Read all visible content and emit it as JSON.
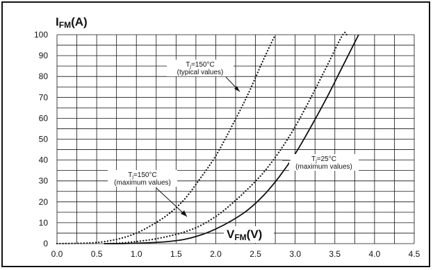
{
  "chart_data": {
    "type": "line",
    "ylabel": {
      "main": "I",
      "sub": "FM",
      "unit": "(A)"
    },
    "xlabel": {
      "main": "V",
      "sub": "FM",
      "unit": "(V)"
    },
    "xlim": [
      0,
      4.5
    ],
    "ylim": [
      0,
      100
    ],
    "xticks": [
      "0.0",
      "0.5",
      "1.0",
      "1.5",
      "2.0",
      "2.5",
      "3.0",
      "3.5",
      "4.0",
      "4.5"
    ],
    "yticks": [
      "0",
      "10",
      "20",
      "30",
      "40",
      "50",
      "60",
      "70",
      "80",
      "90",
      "100"
    ],
    "grid": true,
    "series": [
      {
        "id": "typ150",
        "style": "dotted",
        "x": [
          0.0,
          0.4,
          0.6,
          0.8,
          1.0,
          1.2,
          1.4,
          1.6,
          1.8,
          2.0,
          2.2,
          2.4,
          2.6,
          2.75
        ],
        "y": [
          0,
          0.3,
          1,
          2.5,
          5,
          9,
          14,
          21,
          31,
          42,
          56,
          71,
          88,
          100
        ]
      },
      {
        "id": "max150",
        "style": "dotted",
        "x": [
          0.6,
          0.8,
          1.0,
          1.2,
          1.4,
          1.6,
          1.8,
          2.0,
          2.2,
          2.4,
          2.6,
          2.8,
          3.0,
          3.2,
          3.4,
          3.6,
          3.65
        ],
        "y": [
          0,
          0.3,
          1,
          2,
          3.5,
          5.5,
          8.5,
          13,
          19,
          26,
          34,
          44,
          56,
          70,
          85,
          100,
          100
        ]
      },
      {
        "id": "max25",
        "style": "solid",
        "x": [
          0.6,
          0.8,
          1.0,
          1.2,
          1.4,
          1.6,
          1.8,
          2.0,
          2.2,
          2.4,
          2.6,
          2.8,
          3.0,
          3.2,
          3.4,
          3.6,
          3.8
        ],
        "y": [
          0,
          0,
          0.2,
          0.5,
          1,
          2,
          4,
          7,
          11,
          16,
          23,
          32,
          43,
          56,
          70,
          85,
          100
        ]
      }
    ],
    "annotations": [
      {
        "id": "typ150",
        "line1_main": "T",
        "line1_sub": "j",
        "line1_rest": "=150°C",
        "line2": "(typical values)"
      },
      {
        "id": "max150",
        "line1_main": "T",
        "line1_sub": "j",
        "line1_rest": "=150°C",
        "line2": "(maximum values)"
      },
      {
        "id": "max25",
        "line1_main": "T",
        "line1_sub": "j",
        "line1_rest": "=25°C",
        "line2": "(maximum values)"
      }
    ]
  }
}
